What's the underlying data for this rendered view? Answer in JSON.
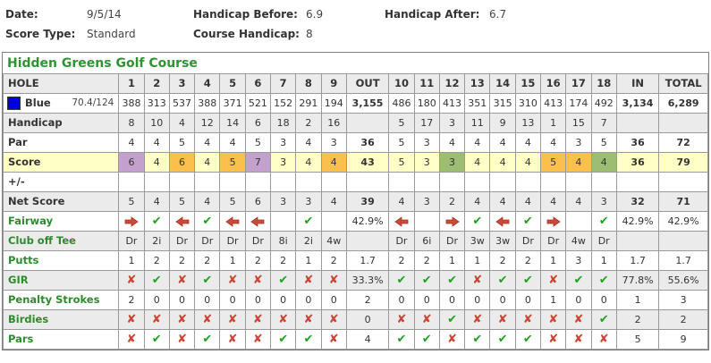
{
  "round_info": {
    "fields": [
      {
        "label": "Date:",
        "value": "9/5/14"
      },
      {
        "label": "Score Type:",
        "value": "Standard"
      },
      {
        "label": "Handicap Before:",
        "value": "6.9"
      },
      {
        "label": "Course Handicap:",
        "value": "8"
      },
      {
        "label": "Handicap After:",
        "value": "6.7"
      }
    ]
  },
  "course": {
    "title": "Hidden Greens Golf Course"
  },
  "icons": {
    "check": {
      "glyph": "✔",
      "color": "#1fa11f"
    },
    "cross": {
      "glyph": "✘",
      "color": "#cc4433"
    },
    "arrow-right": {
      "color": "#c84b38"
    },
    "arrow-left": {
      "color": "#c84b38"
    }
  },
  "colors": {
    "par": "#ffffc6",
    "bogey": "#fbc04b",
    "double_bogey": "#c3a1ce",
    "birdie": "#9cbd72",
    "row_gray": "#ebebeb",
    "label_green": "#2e8b2e",
    "title_green": "#2e9433",
    "tee_blue": "#0000dd"
  },
  "scorecard": {
    "columns": [
      "HOLE",
      "1",
      "2",
      "3",
      "4",
      "5",
      "6",
      "7",
      "8",
      "9",
      "OUT",
      "10",
      "11",
      "12",
      "13",
      "14",
      "15",
      "16",
      "17",
      "18",
      "IN",
      "TOTAL"
    ],
    "tee": {
      "name": "Blue",
      "rating": "70.4/124",
      "swatch_color": "#0000dd"
    },
    "rows": [
      {
        "name": "tee",
        "label": "Blue",
        "label_color": "dark",
        "bg": "white",
        "bold_summary": true,
        "cells": [
          "388",
          "313",
          "537",
          "388",
          "371",
          "521",
          "152",
          "291",
          "194",
          "3,155",
          "486",
          "180",
          "413",
          "351",
          "315",
          "310",
          "413",
          "174",
          "492",
          "3,134",
          "6,289"
        ]
      },
      {
        "name": "handicap",
        "label": "Handicap",
        "label_color": "dark",
        "bg": "gray",
        "bold_summary": false,
        "cells": [
          "8",
          "10",
          "4",
          "12",
          "14",
          "6",
          "18",
          "2",
          "16",
          "",
          "5",
          "17",
          "3",
          "11",
          "9",
          "13",
          "1",
          "15",
          "7",
          "",
          ""
        ]
      },
      {
        "name": "par",
        "label": "Par",
        "label_color": "dark",
        "bg": "white",
        "bold_summary": true,
        "cells": [
          "4",
          "4",
          "5",
          "4",
          "4",
          "5",
          "3",
          "4",
          "3",
          "36",
          "5",
          "3",
          "4",
          "4",
          "4",
          "4",
          "4",
          "3",
          "5",
          "36",
          "72"
        ]
      },
      {
        "name": "score",
        "label": "Score",
        "label_color": "dark",
        "bg": "score",
        "bold_summary": true,
        "cells": [
          {
            "v": "6",
            "c": "double"
          },
          {
            "v": "4",
            "c": "par"
          },
          {
            "v": "6",
            "c": "bogey"
          },
          {
            "v": "4",
            "c": "par"
          },
          {
            "v": "5",
            "c": "bogey"
          },
          {
            "v": "7",
            "c": "double"
          },
          {
            "v": "3",
            "c": "par"
          },
          {
            "v": "4",
            "c": "par"
          },
          {
            "v": "4",
            "c": "bogey"
          },
          "43",
          {
            "v": "5",
            "c": "par"
          },
          {
            "v": "3",
            "c": "par"
          },
          {
            "v": "3",
            "c": "birdie"
          },
          {
            "v": "4",
            "c": "par"
          },
          {
            "v": "4",
            "c": "par"
          },
          {
            "v": "4",
            "c": "par"
          },
          {
            "v": "5",
            "c": "bogey"
          },
          {
            "v": "4",
            "c": "bogey"
          },
          {
            "v": "4",
            "c": "birdie"
          },
          "36",
          "79"
        ]
      },
      {
        "name": "plus-minus",
        "label": "+/-",
        "label_color": "dark",
        "bg": "white",
        "bold_summary": false,
        "cells": [
          "",
          "",
          "",
          "",
          "",
          "",
          "",
          "",
          "",
          "",
          "",
          "",
          "",
          "",
          "",
          "",
          "",
          "",
          "",
          "",
          ""
        ]
      },
      {
        "name": "net-score",
        "label": "Net Score",
        "label_color": "dark",
        "bg": "gray",
        "bold_summary": true,
        "cells": [
          "5",
          "4",
          "5",
          "4",
          "5",
          "6",
          "3",
          "3",
          "4",
          "39",
          "4",
          "3",
          "2",
          "4",
          "4",
          "4",
          "4",
          "4",
          "3",
          "32",
          "71"
        ]
      },
      {
        "name": "fairway",
        "label": "Fairway",
        "label_color": "green",
        "bg": "white",
        "bold_summary": false,
        "cells": [
          {
            "icon": "arrow-right"
          },
          {
            "icon": "check"
          },
          {
            "icon": "arrow-left"
          },
          {
            "icon": "check"
          },
          {
            "icon": "arrow-left"
          },
          {
            "icon": "arrow-left"
          },
          "",
          {
            "icon": "check"
          },
          "",
          "42.9%",
          {
            "icon": "arrow-left"
          },
          "",
          {
            "icon": "arrow-right"
          },
          {
            "icon": "check"
          },
          {
            "icon": "arrow-left"
          },
          {
            "icon": "check"
          },
          {
            "icon": "arrow-right"
          },
          "",
          {
            "icon": "check"
          },
          "42.9%",
          "42.9%"
        ]
      },
      {
        "name": "club-off-tee",
        "label": "Club off Tee",
        "label_color": "green",
        "bg": "gray",
        "bold_summary": false,
        "cells": [
          "Dr",
          "2i",
          "Dr",
          "Dr",
          "Dr",
          "Dr",
          "8i",
          "2i",
          "4w",
          "",
          "Dr",
          "6i",
          "Dr",
          "3w",
          "3w",
          "Dr",
          "Dr",
          "4w",
          "Dr",
          "",
          ""
        ]
      },
      {
        "name": "putts",
        "label": "Putts",
        "label_color": "green",
        "bg": "white",
        "bold_summary": false,
        "cells": [
          "1",
          "2",
          "2",
          "2",
          "1",
          "2",
          "2",
          "1",
          "2",
          "1.7",
          "2",
          "2",
          "1",
          "1",
          "2",
          "2",
          "1",
          "3",
          "1",
          "1.7",
          "1.7"
        ]
      },
      {
        "name": "gir",
        "label": "GIR",
        "label_color": "green",
        "bg": "gray",
        "bold_summary": false,
        "cells": [
          {
            "icon": "cross"
          },
          {
            "icon": "check"
          },
          {
            "icon": "cross"
          },
          {
            "icon": "check"
          },
          {
            "icon": "cross"
          },
          {
            "icon": "cross"
          },
          {
            "icon": "check"
          },
          {
            "icon": "cross"
          },
          {
            "icon": "cross"
          },
          "33.3%",
          {
            "icon": "check"
          },
          {
            "icon": "check"
          },
          {
            "icon": "check"
          },
          {
            "icon": "cross"
          },
          {
            "icon": "check"
          },
          {
            "icon": "check"
          },
          {
            "icon": "cross"
          },
          {
            "icon": "check"
          },
          {
            "icon": "check"
          },
          "77.8%",
          "55.6%"
        ]
      },
      {
        "name": "penalty-strokes",
        "label": "Penalty Strokes",
        "label_color": "green",
        "bg": "white",
        "bold_summary": false,
        "cells": [
          "2",
          "0",
          "0",
          "0",
          "0",
          "0",
          "0",
          "0",
          "0",
          "2",
          "0",
          "0",
          "0",
          "0",
          "0",
          "0",
          "1",
          "0",
          "0",
          "1",
          "3"
        ]
      },
      {
        "name": "birdies",
        "label": "Birdies",
        "label_color": "green",
        "bg": "gray",
        "bold_summary": false,
        "cells": [
          {
            "icon": "cross"
          },
          {
            "icon": "cross"
          },
          {
            "icon": "cross"
          },
          {
            "icon": "cross"
          },
          {
            "icon": "cross"
          },
          {
            "icon": "cross"
          },
          {
            "icon": "cross"
          },
          {
            "icon": "cross"
          },
          {
            "icon": "cross"
          },
          "0",
          {
            "icon": "cross"
          },
          {
            "icon": "cross"
          },
          {
            "icon": "check"
          },
          {
            "icon": "cross"
          },
          {
            "icon": "cross"
          },
          {
            "icon": "cross"
          },
          {
            "icon": "cross"
          },
          {
            "icon": "cross"
          },
          {
            "icon": "check"
          },
          "2",
          "2"
        ]
      },
      {
        "name": "pars",
        "label": "Pars",
        "label_color": "green",
        "bg": "white",
        "bold_summary": false,
        "cells": [
          {
            "icon": "cross"
          },
          {
            "icon": "check"
          },
          {
            "icon": "cross"
          },
          {
            "icon": "check"
          },
          {
            "icon": "cross"
          },
          {
            "icon": "cross"
          },
          {
            "icon": "check"
          },
          {
            "icon": "check"
          },
          {
            "icon": "cross"
          },
          "4",
          {
            "icon": "check"
          },
          {
            "icon": "check"
          },
          {
            "icon": "cross"
          },
          {
            "icon": "check"
          },
          {
            "icon": "check"
          },
          {
            "icon": "check"
          },
          {
            "icon": "cross"
          },
          {
            "icon": "cross"
          },
          {
            "icon": "cross"
          },
          "5",
          "9"
        ]
      }
    ]
  }
}
